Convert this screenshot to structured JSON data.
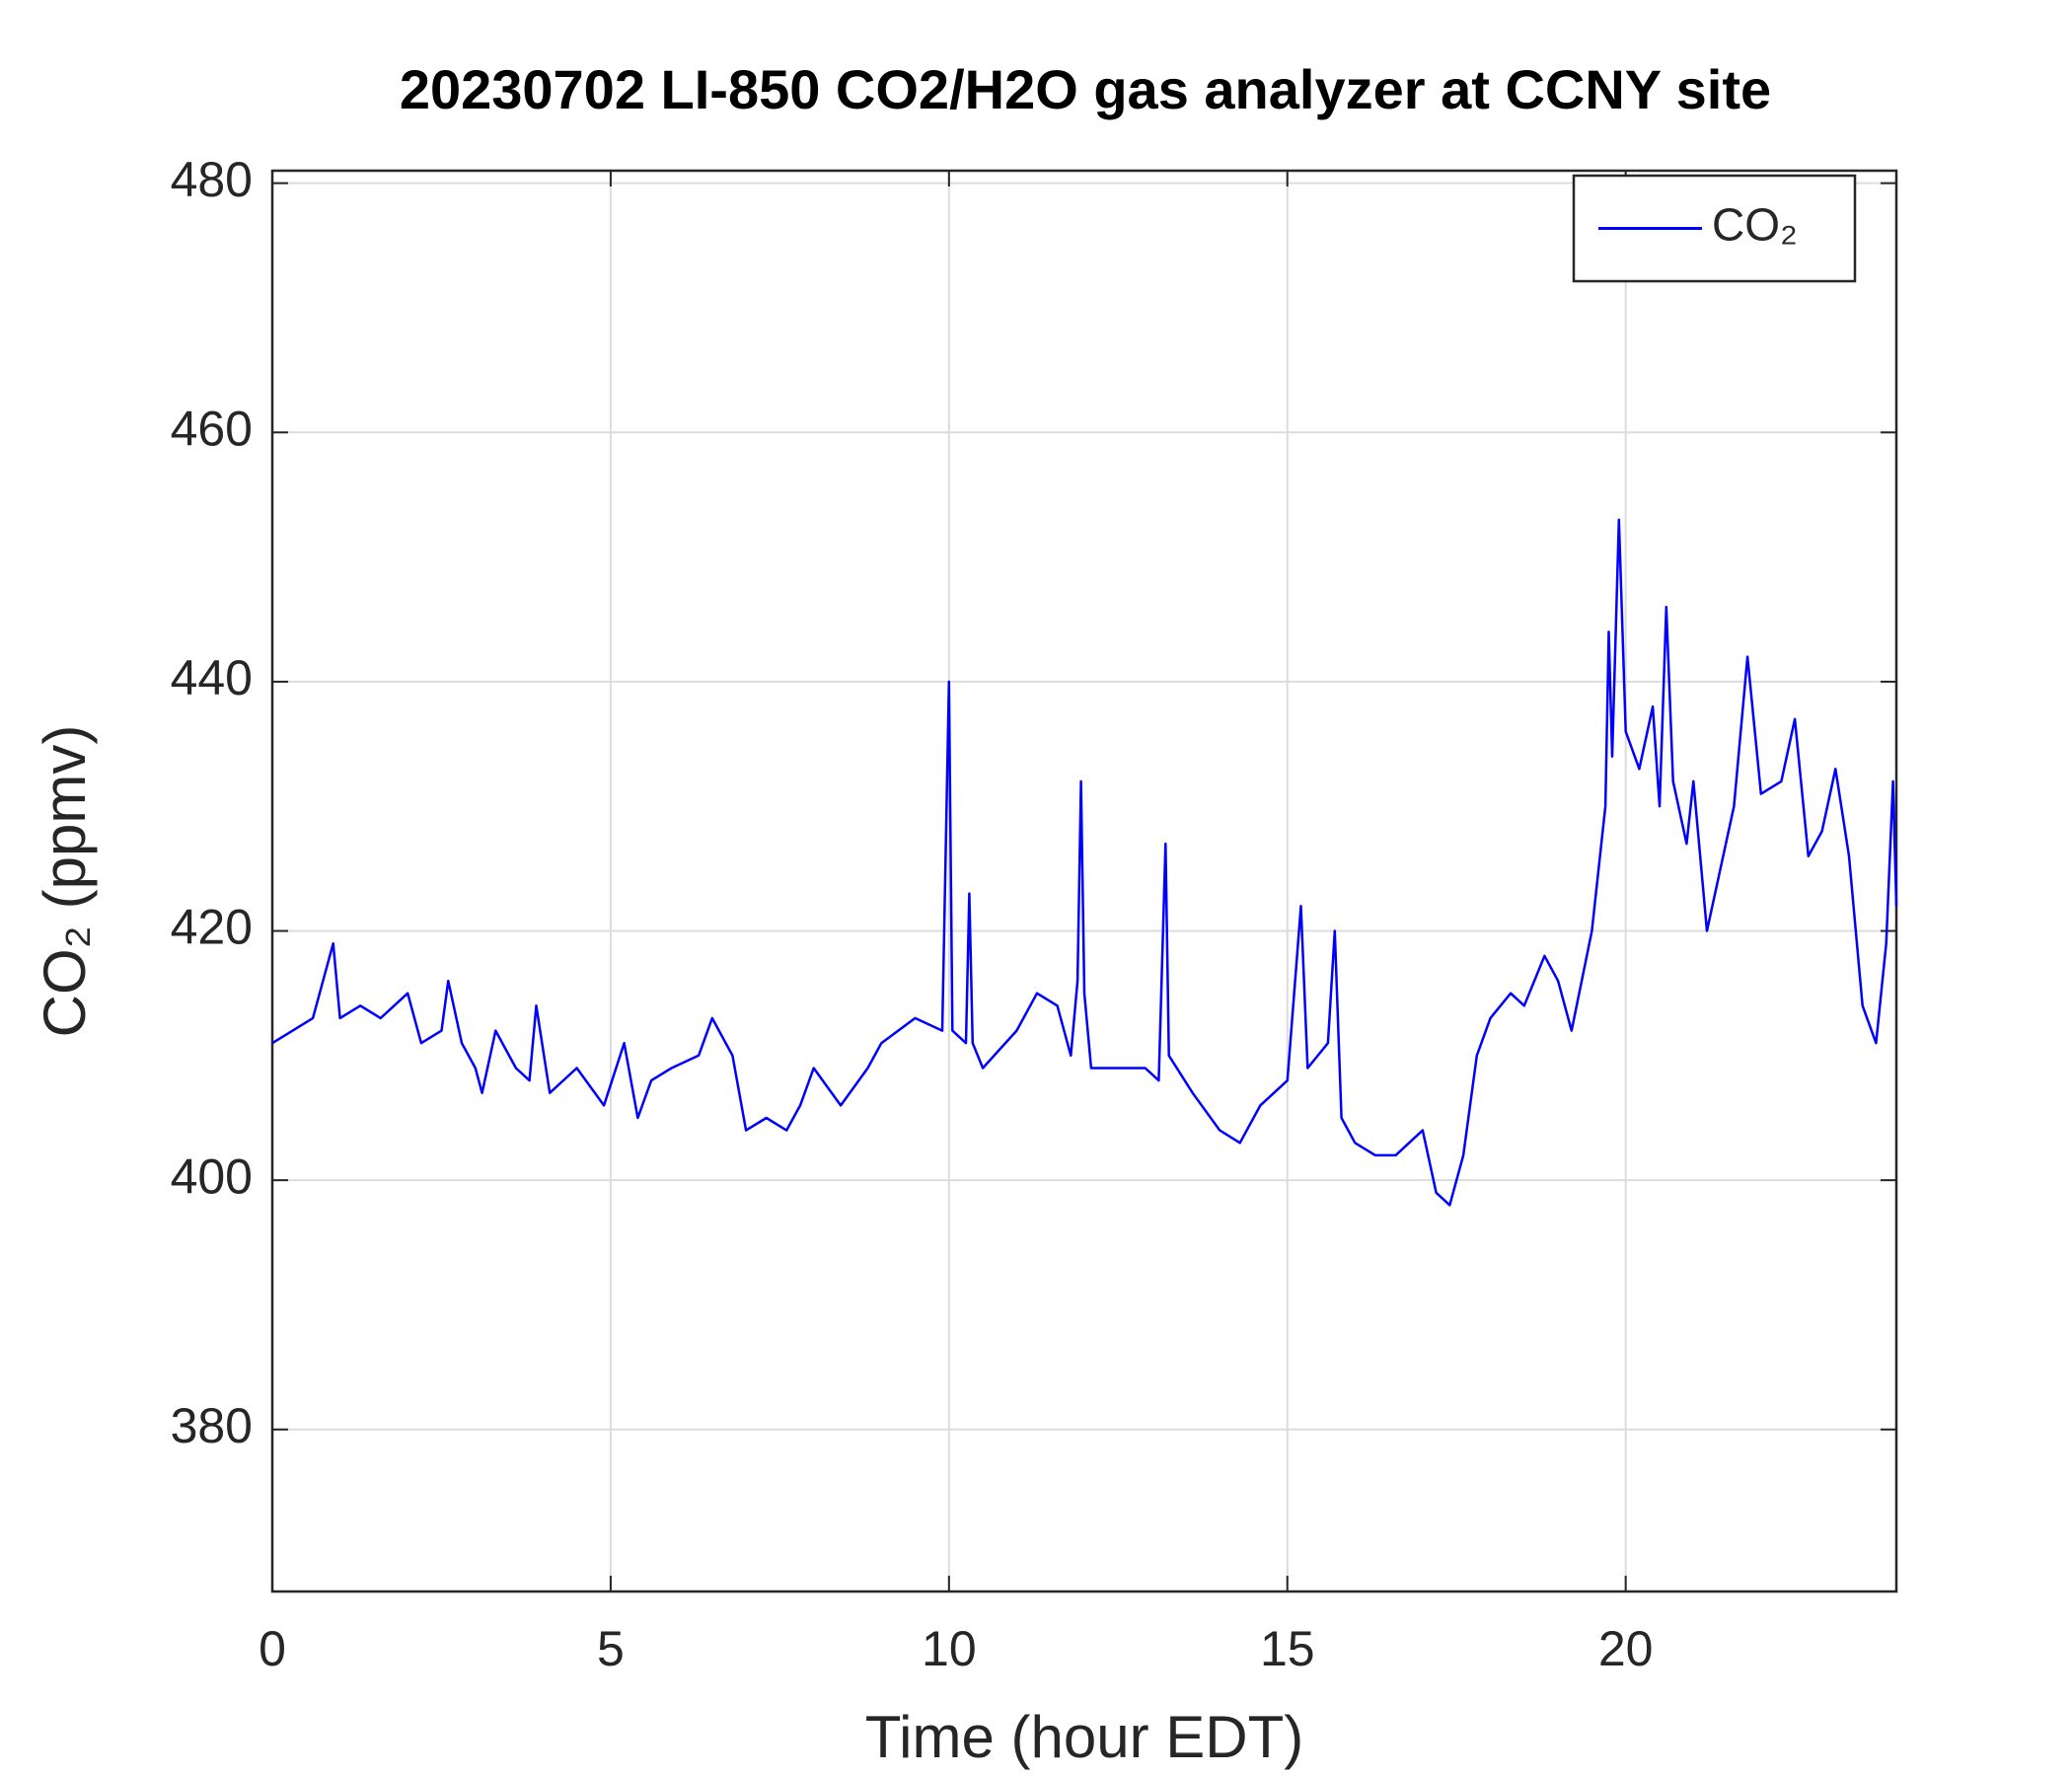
{
  "chart_data": {
    "type": "line",
    "title": "20230702 LI-850 CO2/H2O gas analyzer at CCNY site",
    "x_label": "Time (hour EDT)",
    "y_label": "CO₂ (ppmv)",
    "xlim": [
      0,
      24
    ],
    "xticks": [
      0,
      5,
      10,
      15,
      20
    ],
    "ylim": [
      367,
      481
    ],
    "yticks": [
      380,
      400,
      420,
      440,
      460,
      480
    ],
    "grid": true,
    "legend": "upper right",
    "x": [
      0,
      0.3,
      0.6,
      0.9,
      1.0,
      1.3,
      1.6,
      2.0,
      2.2,
      2.5,
      2.6,
      2.8,
      3.0,
      3.1,
      3.3,
      3.6,
      3.8,
      3.9,
      4.1,
      4.5,
      4.9,
      5.2,
      5.4,
      5.6,
      5.9,
      6.3,
      6.5,
      6.8,
      7.0,
      7.3,
      7.6,
      7.8,
      8.0,
      8.4,
      8.8,
      9.0,
      9.5,
      9.9,
      10.0,
      10.05,
      10.25,
      10.3,
      10.35,
      10.5,
      11.0,
      11.3,
      11.6,
      11.8,
      11.9,
      11.95,
      12.0,
      12.1,
      12.5,
      12.9,
      13.1,
      13.2,
      13.25,
      13.6,
      14.0,
      14.3,
      14.6,
      15.0,
      15.2,
      15.3,
      15.6,
      15.7,
      15.8,
      16.0,
      16.3,
      16.6,
      17.0,
      17.2,
      17.4,
      17.6,
      17.8,
      18.0,
      18.3,
      18.5,
      18.8,
      19.0,
      19.2,
      19.5,
      19.7,
      19.75,
      19.8,
      19.9,
      20.0,
      20.2,
      20.4,
      20.5,
      20.6,
      20.7,
      20.9,
      21.0,
      21.2,
      21.4,
      21.6,
      21.8,
      22.0,
      22.3,
      22.5,
      22.7,
      22.9,
      23.1,
      23.3,
      23.5,
      23.7,
      23.85,
      23.95,
      24.0
    ],
    "series": [
      {
        "name": "CO₂",
        "color": "#0000ff",
        "values": [
          411,
          412,
          413,
          419,
          413,
          414,
          413,
          415,
          411,
          412,
          416,
          411,
          409,
          407,
          412,
          409,
          408,
          414,
          407,
          409,
          406,
          411,
          405,
          408,
          409,
          410,
          413,
          410,
          404,
          405,
          404,
          406,
          409,
          406,
          409,
          411,
          413,
          412,
          440,
          412,
          411,
          423,
          411,
          409,
          412,
          415,
          414,
          410,
          416,
          432,
          415,
          409,
          409,
          409,
          408,
          427,
          410,
          407,
          404,
          403,
          406,
          408,
          422,
          409,
          411,
          420,
          405,
          403,
          402,
          402,
          404,
          399,
          398,
          402,
          410,
          413,
          415,
          414,
          418,
          416,
          412,
          420,
          430,
          444,
          434,
          453,
          436,
          433,
          438,
          430,
          446,
          432,
          427,
          432,
          420,
          425,
          430,
          442,
          431,
          432,
          437,
          426,
          428,
          433,
          426,
          414,
          411,
          419,
          432,
          422
        ]
      }
    ]
  }
}
